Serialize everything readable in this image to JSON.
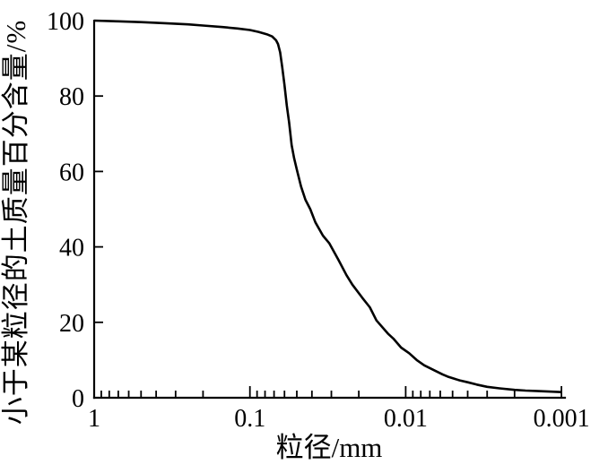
{
  "chart_data": {
    "type": "line",
    "title": "",
    "xlabel": "粒径/mm",
    "ylabel": "小于某粒径的土质量百分含量/%",
    "x_scale": "log-reversed",
    "x_range": [
      1,
      0.001
    ],
    "ylim": [
      0,
      100
    ],
    "grid": false,
    "legend": false,
    "x_ticks": {
      "values": [
        1,
        0.1,
        0.01,
        0.001
      ],
      "labels": [
        "1",
        "0.1",
        "0.01",
        "0.001"
      ]
    },
    "y_ticks": {
      "values": [
        0,
        20,
        40,
        60,
        80,
        100
      ],
      "labels": [
        "0",
        "20",
        "40",
        "60",
        "80",
        "100"
      ]
    },
    "series": [
      {
        "name": "grain-size-distribution-curve",
        "color": "#000000",
        "points": [
          [
            1,
            100
          ],
          [
            0.7,
            99.8
          ],
          [
            0.5,
            99.6
          ],
          [
            0.35,
            99.3
          ],
          [
            0.25,
            99.0
          ],
          [
            0.2,
            98.7
          ],
          [
            0.15,
            98.3
          ],
          [
            0.12,
            97.9
          ],
          [
            0.1,
            97.5
          ],
          [
            0.088,
            97.0
          ],
          [
            0.078,
            96.4
          ],
          [
            0.072,
            95.8
          ],
          [
            0.068,
            94.8
          ],
          [
            0.066,
            93.8
          ],
          [
            0.064,
            91.6
          ],
          [
            0.062,
            87.5
          ],
          [
            0.06,
            83.0
          ],
          [
            0.058,
            77.5
          ],
          [
            0.056,
            73.0
          ],
          [
            0.054,
            67.0
          ],
          [
            0.052,
            63.5
          ],
          [
            0.05,
            60.5
          ],
          [
            0.047,
            56.0
          ],
          [
            0.044,
            52.5
          ],
          [
            0.041,
            50.0
          ],
          [
            0.038,
            46.5
          ],
          [
            0.034,
            43.0
          ],
          [
            0.031,
            41.0
          ],
          [
            0.027,
            36.5
          ],
          [
            0.024,
            32.5
          ],
          [
            0.022,
            30.0
          ],
          [
            0.019,
            26.5
          ],
          [
            0.017,
            24.0
          ],
          [
            0.0154,
            20.5
          ],
          [
            0.013,
            17.0
          ],
          [
            0.012,
            15.7
          ],
          [
            0.0107,
            13.3
          ],
          [
            0.0095,
            11.8
          ],
          [
            0.0085,
            10.0
          ],
          [
            0.0076,
            8.6
          ],
          [
            0.0065,
            7.2
          ],
          [
            0.0058,
            6.2
          ],
          [
            0.0053,
            5.5
          ],
          [
            0.0045,
            4.6
          ],
          [
            0.004,
            4.1
          ],
          [
            0.0035,
            3.5
          ],
          [
            0.003,
            2.9
          ],
          [
            0.0025,
            2.5
          ],
          [
            0.002,
            2.1
          ],
          [
            0.0017,
            1.9
          ],
          [
            0.0014,
            1.75
          ],
          [
            0.0012,
            1.65
          ],
          [
            0.001,
            1.5
          ]
        ]
      }
    ]
  },
  "colors": {
    "background": "#ffffff",
    "axis": "#000000",
    "curve": "#000000",
    "text": "#000000"
  }
}
